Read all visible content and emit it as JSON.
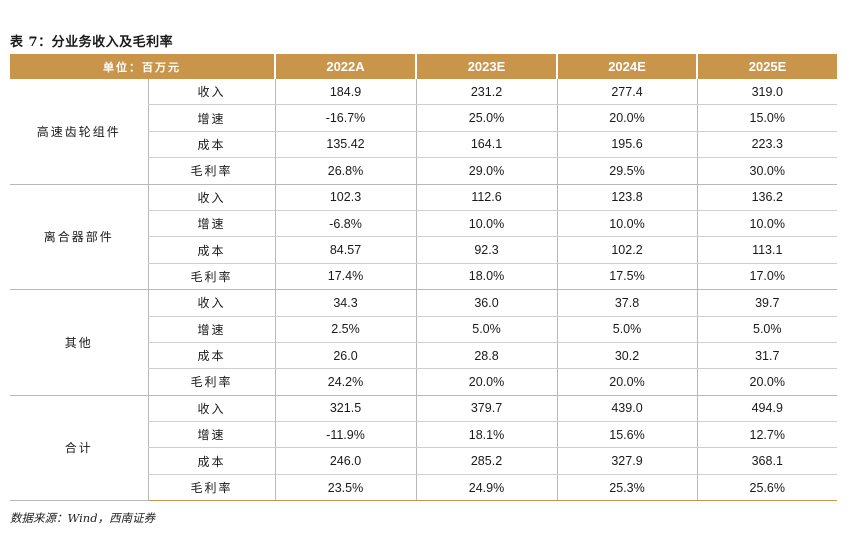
{
  "title": "表 7：分业务收入及毛利率",
  "header": {
    "unit_label": "单位：百万元",
    "years": [
      "2022A",
      "2023E",
      "2024E",
      "2025E"
    ]
  },
  "segments": [
    {
      "name": "高速齿轮组件",
      "rows": [
        {
          "metric": "收入",
          "values": [
            "184.9",
            "231.2",
            "277.4",
            "319.0"
          ]
        },
        {
          "metric": "增速",
          "values": [
            "-16.7%",
            "25.0%",
            "20.0%",
            "15.0%"
          ]
        },
        {
          "metric": "成本",
          "values": [
            "135.42",
            "164.1",
            "195.6",
            "223.3"
          ]
        },
        {
          "metric": "毛利率",
          "values": [
            "26.8%",
            "29.0%",
            "29.5%",
            "30.0%"
          ]
        }
      ]
    },
    {
      "name": "离合器部件",
      "rows": [
        {
          "metric": "收入",
          "values": [
            "102.3",
            "112.6",
            "123.8",
            "136.2"
          ]
        },
        {
          "metric": "增速",
          "values": [
            "-6.8%",
            "10.0%",
            "10.0%",
            "10.0%"
          ]
        },
        {
          "metric": "成本",
          "values": [
            "84.57",
            "92.3",
            "102.2",
            "113.1"
          ]
        },
        {
          "metric": "毛利率",
          "values": [
            "17.4%",
            "18.0%",
            "17.5%",
            "17.0%"
          ]
        }
      ]
    },
    {
      "name": "其他",
      "rows": [
        {
          "metric": "收入",
          "values": [
            "34.3",
            "36.0",
            "37.8",
            "39.7"
          ]
        },
        {
          "metric": "增速",
          "values": [
            "2.5%",
            "5.0%",
            "5.0%",
            "5.0%"
          ]
        },
        {
          "metric": "成本",
          "values": [
            "26.0",
            "28.8",
            "30.2",
            "31.7"
          ]
        },
        {
          "metric": "毛利率",
          "values": [
            "24.2%",
            "20.0%",
            "20.0%",
            "20.0%"
          ]
        }
      ]
    },
    {
      "name": "合计",
      "rows": [
        {
          "metric": "收入",
          "values": [
            "321.5",
            "379.7",
            "439.0",
            "494.9"
          ]
        },
        {
          "metric": "增速",
          "values": [
            "-11.9%",
            "18.1%",
            "15.6%",
            "12.7%"
          ]
        },
        {
          "metric": "成本",
          "values": [
            "246.0",
            "285.2",
            "327.9",
            "368.1"
          ]
        },
        {
          "metric": "毛利率",
          "values": [
            "23.5%",
            "24.9%",
            "25.3%",
            "25.6%"
          ]
        }
      ]
    }
  ],
  "source": "数据来源：Wind，西南证券",
  "colors": {
    "header_bg": "#c8954b",
    "header_text": "#ffffff"
  }
}
